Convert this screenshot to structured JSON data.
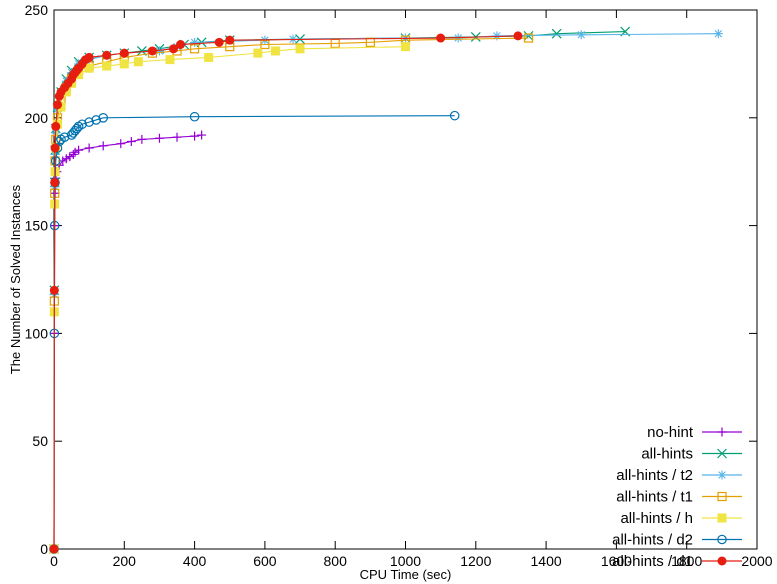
{
  "chart_data": {
    "type": "line",
    "title": "",
    "xlabel": "CPU Time (sec)",
    "ylabel": "The Number of Solved Instances",
    "xlim": [
      0,
      2000
    ],
    "ylim": [
      0,
      250
    ],
    "x_ticks": [
      0,
      200,
      400,
      600,
      800,
      1000,
      1200,
      1400,
      1600,
      1800,
      2000
    ],
    "y_ticks": [
      0,
      50,
      100,
      150,
      200,
      250
    ],
    "grid": false,
    "legend_position": "bottom-right",
    "series": [
      {
        "name": "no-hint",
        "color": "#9400d3",
        "marker": "plus",
        "points": [
          [
            0,
            0
          ],
          [
            1,
            100
          ],
          [
            2,
            150
          ],
          [
            3,
            165
          ],
          [
            5,
            172
          ],
          [
            8,
            175
          ],
          [
            15,
            178
          ],
          [
            25,
            180
          ],
          [
            35,
            181
          ],
          [
            45,
            182
          ],
          [
            55,
            183
          ],
          [
            60,
            184
          ],
          [
            70,
            185
          ],
          [
            100,
            186
          ],
          [
            140,
            187
          ],
          [
            190,
            188
          ],
          [
            220,
            189
          ],
          [
            250,
            190
          ],
          [
            300,
            190.5
          ],
          [
            350,
            191
          ],
          [
            400,
            191.5
          ],
          [
            420,
            192
          ]
        ]
      },
      {
        "name": "all-hints",
        "color": "#009e73",
        "marker": "x",
        "points": [
          [
            0,
            0
          ],
          [
            1,
            120
          ],
          [
            2,
            170
          ],
          [
            3,
            185
          ],
          [
            5,
            195
          ],
          [
            10,
            205
          ],
          [
            20,
            212
          ],
          [
            35,
            218
          ],
          [
            50,
            222
          ],
          [
            70,
            226
          ],
          [
            100,
            228
          ],
          [
            150,
            229
          ],
          [
            200,
            230
          ],
          [
            250,
            231
          ],
          [
            300,
            232
          ],
          [
            370,
            234
          ],
          [
            420,
            235
          ],
          [
            500,
            236
          ],
          [
            700,
            236.5
          ],
          [
            1000,
            237
          ],
          [
            1200,
            237.5
          ],
          [
            1350,
            238
          ],
          [
            1430,
            239
          ],
          [
            1625,
            240
          ]
        ]
      },
      {
        "name": "all-hints / t2",
        "color": "#56b4e9",
        "marker": "star",
        "points": [
          [
            0,
            0
          ],
          [
            1,
            118
          ],
          [
            2,
            168
          ],
          [
            3,
            183
          ],
          [
            5,
            193
          ],
          [
            10,
            204
          ],
          [
            20,
            211
          ],
          [
            35,
            217
          ],
          [
            50,
            221
          ],
          [
            70,
            225
          ],
          [
            100,
            227
          ],
          [
            150,
            229
          ],
          [
            200,
            230
          ],
          [
            300,
            231
          ],
          [
            350,
            233
          ],
          [
            400,
            235
          ],
          [
            600,
            236
          ],
          [
            680,
            236.5
          ],
          [
            1000,
            237
          ],
          [
            1150,
            237
          ],
          [
            1260,
            238
          ],
          [
            1500,
            238.5
          ],
          [
            1890,
            239
          ]
        ]
      },
      {
        "name": "all-hints / t1",
        "color": "#e69f00",
        "marker": "square-open",
        "points": [
          [
            0,
            0
          ],
          [
            1,
            115
          ],
          [
            2,
            165
          ],
          [
            3,
            180
          ],
          [
            5,
            190
          ],
          [
            10,
            200
          ],
          [
            20,
            208
          ],
          [
            35,
            214
          ],
          [
            50,
            218
          ],
          [
            70,
            222
          ],
          [
            100,
            224
          ],
          [
            150,
            226
          ],
          [
            200,
            228
          ],
          [
            280,
            230
          ],
          [
            350,
            231
          ],
          [
            400,
            232
          ],
          [
            500,
            233
          ],
          [
            600,
            234
          ],
          [
            800,
            234.5
          ],
          [
            900,
            235
          ],
          [
            1000,
            236
          ],
          [
            1350,
            237
          ]
        ]
      },
      {
        "name": "all-hints / h",
        "color": "#f0e442",
        "marker": "square-filled",
        "points": [
          [
            0,
            0
          ],
          [
            1,
            110
          ],
          [
            2,
            160
          ],
          [
            3,
            175
          ],
          [
            5,
            186
          ],
          [
            10,
            197
          ],
          [
            20,
            205
          ],
          [
            35,
            212
          ],
          [
            50,
            216
          ],
          [
            70,
            220
          ],
          [
            100,
            223
          ],
          [
            150,
            224
          ],
          [
            200,
            225
          ],
          [
            240,
            226
          ],
          [
            330,
            227
          ],
          [
            440,
            228
          ],
          [
            580,
            230
          ],
          [
            630,
            231
          ],
          [
            700,
            232
          ],
          [
            1000,
            233
          ]
        ]
      },
      {
        "name": "all-hints / d2",
        "color": "#0072b2",
        "marker": "circle-open",
        "points": [
          [
            0,
            0
          ],
          [
            1,
            100
          ],
          [
            2,
            150
          ],
          [
            3,
            170
          ],
          [
            5,
            180
          ],
          [
            10,
            186
          ],
          [
            15,
            189
          ],
          [
            20,
            190
          ],
          [
            30,
            191
          ],
          [
            50,
            192
          ],
          [
            55,
            193
          ],
          [
            60,
            194
          ],
          [
            65,
            195
          ],
          [
            70,
            196
          ],
          [
            80,
            197
          ],
          [
            100,
            198
          ],
          [
            120,
            199
          ],
          [
            140,
            200
          ],
          [
            400,
            200.5
          ],
          [
            1140,
            201
          ]
        ]
      },
      {
        "name": "all-hints / d1",
        "color": "#e51e10",
        "marker": "circle-filled",
        "points": [
          [
            0,
            0
          ],
          [
            1,
            120
          ],
          [
            2,
            170
          ],
          [
            3,
            186
          ],
          [
            5,
            196
          ],
          [
            10,
            206
          ],
          [
            15,
            210
          ],
          [
            20,
            212
          ],
          [
            30,
            214
          ],
          [
            40,
            216
          ],
          [
            50,
            218
          ],
          [
            55,
            220
          ],
          [
            60,
            221
          ],
          [
            65,
            222
          ],
          [
            70,
            223
          ],
          [
            80,
            225
          ],
          [
            90,
            227
          ],
          [
            100,
            228
          ],
          [
            150,
            229
          ],
          [
            200,
            230
          ],
          [
            280,
            231
          ],
          [
            340,
            232
          ],
          [
            360,
            234
          ],
          [
            470,
            235
          ],
          [
            500,
            236
          ],
          [
            1100,
            237
          ],
          [
            1320,
            238
          ]
        ]
      }
    ]
  }
}
